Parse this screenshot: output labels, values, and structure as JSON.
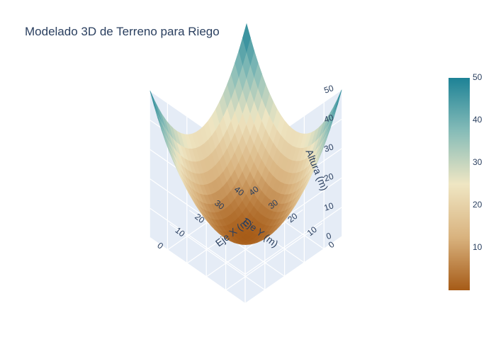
{
  "chart_data": {
    "type": "surface",
    "title": "Modelado 3D de Terreno para Riego",
    "x_axis": {
      "label": "Eje X (m)",
      "range": [
        0,
        49
      ],
      "ticks": [
        "0",
        "10",
        "20",
        "30",
        "40"
      ]
    },
    "y_axis": {
      "label": "Eje Y (m)",
      "range": [
        0,
        49
      ],
      "ticks": [
        "0",
        "10",
        "20",
        "30",
        "40"
      ]
    },
    "z_axis": {
      "label": "Altura (m)",
      "range": [
        0,
        50
      ],
      "ticks": [
        "0",
        "10",
        "20",
        "30",
        "40",
        "50"
      ]
    },
    "surface": {
      "function": "z = ((x - 24.5)^2 + (y - 24.5)^2) / 24.01",
      "grid_size": 50,
      "z_min": 0,
      "z_max": 50,
      "corner_values": {
        "x0_y0": 50,
        "x49_y0": 50,
        "x0_y49": 50,
        "x49_y49": 50
      },
      "center_value": 0
    },
    "colorscale": [
      "#a65b17",
      "#d9b37f",
      "#efe6c3",
      "#86bcb8",
      "#1d8296"
    ],
    "colorbar": {
      "range": [
        0,
        50
      ],
      "ticks": [
        "10",
        "20",
        "30",
        "40",
        "50"
      ]
    },
    "scene_background": "#e5ecf6",
    "grid": true
  }
}
